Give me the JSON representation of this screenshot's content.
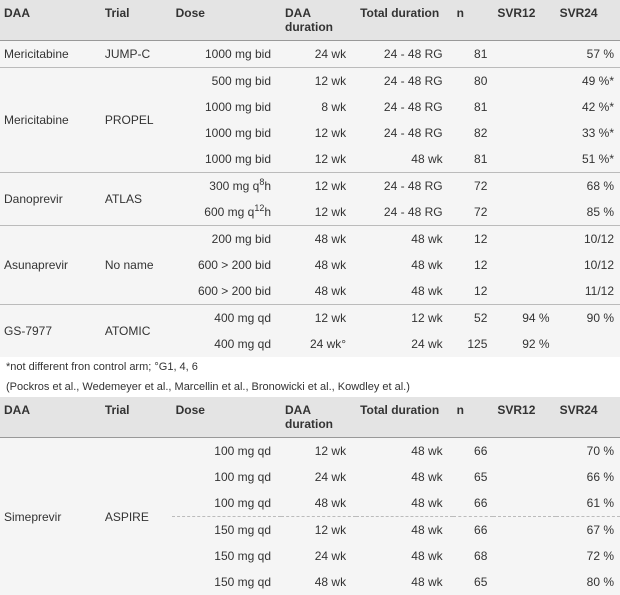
{
  "columns": [
    "DAA",
    "Trial",
    "Dose",
    "DAA duration",
    "Total duration",
    "n",
    "SVR12",
    "SVR24"
  ],
  "footnotes": [
    "*not different fron control arm; °G1, 4, 6",
    "(Pockros et al., Wedemeyer et al., Marcellin et al., Bronowicki et al., Kowdley et al.)"
  ],
  "table1_groups": [
    {
      "daa": "Mericitabine",
      "trial": "JUMP-C",
      "rows": [
        {
          "dose": "1000 mg bid",
          "daadur": "24 wk",
          "total": "24 - 48 RG",
          "n": "81",
          "svr12": "",
          "svr24": "57 %"
        }
      ]
    },
    {
      "daa": "Mericitabine",
      "trial": "PROPEL",
      "rows": [
        {
          "dose": "500 mg bid",
          "daadur": "12 wk",
          "total": "24 - 48 RG",
          "n": "80",
          "svr12": "",
          "svr24": "49 %*"
        },
        {
          "dose": "1000 mg bid",
          "daadur": "8 wk",
          "total": "24 - 48 RG",
          "n": "81",
          "svr12": "",
          "svr24": "42 %*"
        },
        {
          "dose": "1000 mg bid",
          "daadur": "12 wk",
          "total": "24 - 48 RG",
          "n": "82",
          "svr12": "",
          "svr24": "33 %*"
        },
        {
          "dose": "1000 mg bid",
          "daadur": "12 wk",
          "total": "48 wk",
          "n": "81",
          "svr12": "",
          "svr24": "51 %*"
        }
      ]
    },
    {
      "daa": "Danoprevir",
      "trial": "ATLAS",
      "rows": [
        {
          "dose": "300 mg q8h",
          "daadur": "12 wk",
          "total": "24 - 48 RG",
          "n": "72",
          "svr12": "",
          "svr24": "68 %"
        },
        {
          "dose": "600 mg q12h",
          "daadur": "12 wk",
          "total": "24 - 48 RG",
          "n": "72",
          "svr12": "",
          "svr24": "85 %"
        }
      ]
    },
    {
      "daa": "Asunaprevir",
      "trial": "No name",
      "rows": [
        {
          "dose": "200 mg bid",
          "daadur": "48 wk",
          "total": "48 wk",
          "n": "12",
          "svr12": "",
          "svr24": "10/12"
        },
        {
          "dose": "600 > 200 bid",
          "daadur": "48 wk",
          "total": "48 wk",
          "n": "12",
          "svr12": "",
          "svr24": "10/12"
        },
        {
          "dose": "600 > 200 bid",
          "daadur": "48 wk",
          "total": "48 wk",
          "n": "12",
          "svr12": "",
          "svr24": "11/12"
        }
      ]
    },
    {
      "daa": "GS-7977",
      "trial": "ATOMIC",
      "rows": [
        {
          "dose": "400 mg qd",
          "daadur": "12 wk",
          "total": "12 wk",
          "n": "52",
          "svr12": "94 %",
          "svr24": "90 %"
        },
        {
          "dose": "400 mg qd",
          "daadur": "24 wk°",
          "total": "24 wk",
          "n": "125",
          "svr12": "92 %",
          "svr24": ""
        }
      ]
    }
  ],
  "table2_groups": [
    {
      "daa": "Simeprevir",
      "trial": "ASPIRE",
      "subgroups": [
        [
          {
            "dose": "100 mg qd",
            "daadur": "12 wk",
            "total": "48 wk",
            "n": "66",
            "svr12": "",
            "svr24": "70 %"
          },
          {
            "dose": "100 mg qd",
            "daadur": "24 wk",
            "total": "48 wk",
            "n": "65",
            "svr12": "",
            "svr24": "66 %"
          },
          {
            "dose": "100 mg qd",
            "daadur": "48 wk",
            "total": "48 wk",
            "n": "66",
            "svr12": "",
            "svr24": "61 %"
          }
        ],
        [
          {
            "dose": "150 mg qd",
            "daadur": "12 wk",
            "total": "48 wk",
            "n": "66",
            "svr12": "",
            "svr24": "67 %"
          },
          {
            "dose": "150 mg qd",
            "daadur": "24 wk",
            "total": "48 wk",
            "n": "68",
            "svr12": "",
            "svr24": "72 %"
          },
          {
            "dose": "150 mg qd",
            "daadur": "48 wk",
            "total": "48 wk",
            "n": "65",
            "svr12": "",
            "svr24": "80 %"
          }
        ]
      ]
    }
  ]
}
